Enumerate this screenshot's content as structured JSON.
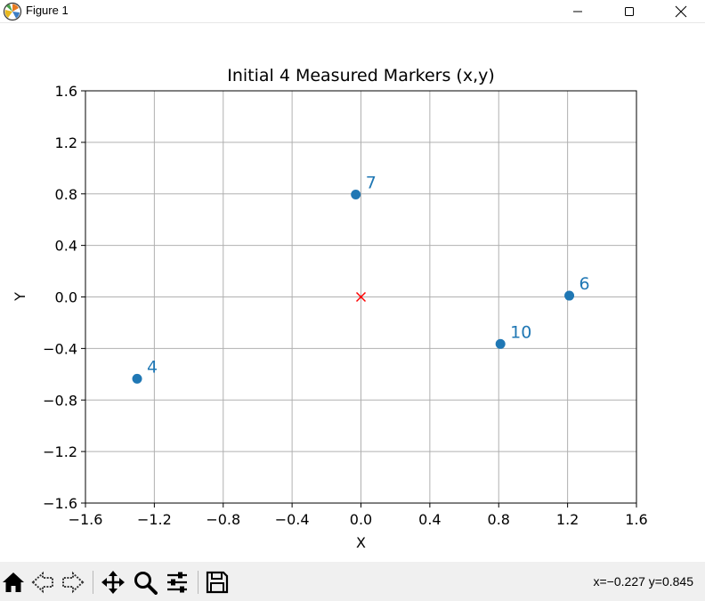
{
  "window": {
    "title": "Figure 1",
    "icons": {
      "app": "matplotlib-logo-icon",
      "minimize": "minimize-icon",
      "maximize": "maximize-icon",
      "close": "close-icon"
    }
  },
  "toolbar": {
    "buttons": [
      "home-icon",
      "back-arrow-icon",
      "forward-arrow-icon",
      "pan-icon",
      "zoom-icon",
      "configure-subplots-icon",
      "save-icon"
    ],
    "coord_readout": "x=−0.227 y=0.845"
  },
  "colors": {
    "points": "#1f77b4",
    "origin": "#ff0000",
    "grid": "#b0b0b0"
  },
  "chart_data": {
    "type": "scatter",
    "title": "Initial 4 Measured Markers (x,y)",
    "xlabel": "X",
    "ylabel": "Y",
    "xlim": [
      -1.6,
      1.6
    ],
    "ylim": [
      -1.6,
      1.6
    ],
    "xticks": [
      -1.6,
      -1.2,
      -0.8,
      -0.4,
      0.0,
      0.4,
      0.8,
      1.2,
      1.6
    ],
    "yticks": [
      -1.6,
      -1.2,
      -0.8,
      -0.4,
      0.0,
      0.4,
      0.8,
      1.2,
      1.6
    ],
    "xtick_labels": [
      "−1.6",
      "−1.2",
      "−0.8",
      "−0.4",
      "0.0",
      "0.4",
      "0.8",
      "1.2",
      "1.6"
    ],
    "ytick_labels": [
      "−1.6",
      "−1.2",
      "−0.8",
      "−0.4",
      "0.0",
      "0.4",
      "0.8",
      "1.2",
      "1.6"
    ],
    "grid": true,
    "points": [
      {
        "x": -1.3,
        "y": -0.635,
        "label": "4"
      },
      {
        "x": -0.03,
        "y": 0.795,
        "label": "7"
      },
      {
        "x": 0.81,
        "y": -0.365,
        "label": "10"
      },
      {
        "x": 1.21,
        "y": 0.01,
        "label": "6"
      }
    ],
    "origin_marker": {
      "x": 0.0,
      "y": 0.0,
      "marker": "x"
    }
  }
}
